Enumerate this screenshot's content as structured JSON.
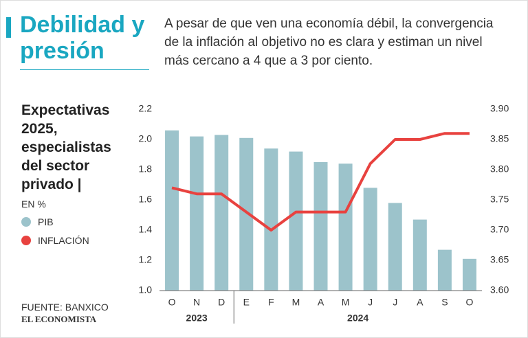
{
  "chart_data": {
    "type": "bar-line",
    "title": "Debilidad y presión",
    "subtitle": "A pesar de que ven una economía débil, la convergencia de la inflación al objetivo no es clara y estiman un nivel más cercano a 4 que a 3 por ciento.",
    "chart_label": "Expectativas 2025, especialistas del sector privado |",
    "unit": "EN %",
    "source": "FUENTE: BANXICO",
    "brand": "EL ECONOMISTA",
    "categories": [
      "O",
      "N",
      "D",
      "E",
      "F",
      "M",
      "A",
      "M",
      "J",
      "J",
      "A",
      "S",
      "O"
    ],
    "category_years": [
      "2023",
      "2023",
      "2023",
      "2024",
      "2024",
      "2024",
      "2024",
      "2024",
      "2024",
      "2024",
      "2024",
      "2024",
      "2024"
    ],
    "series": [
      {
        "name": "PIB",
        "type": "bar",
        "color": "#9cc3cb",
        "values": [
          2.06,
          2.02,
          2.03,
          2.01,
          1.94,
          1.92,
          1.85,
          1.84,
          1.68,
          1.58,
          1.47,
          1.27,
          1.21
        ]
      },
      {
        "name": "INFLACIÓN",
        "type": "line",
        "axis": "y2",
        "color": "#e8423f",
        "values": [
          3.77,
          3.76,
          3.76,
          3.73,
          3.7,
          3.73,
          3.73,
          3.73,
          3.81,
          3.85,
          3.85,
          3.86,
          3.86
        ]
      }
    ],
    "ylim": [
      1.0,
      2.2
    ],
    "yticks": [
      {
        "value": 1.0,
        "label": "1.0"
      },
      1.2,
      1.4,
      1.6,
      1.8,
      {
        "value": 2.0,
        "label": "2.0"
      },
      2.2
    ],
    "y2lim": [
      3.6,
      3.9
    ],
    "y2ticks": [
      {
        "value": 3.6,
        "label": "3.60"
      },
      3.65,
      {
        "value": 3.7,
        "label": "3.70"
      },
      3.75,
      {
        "value": 3.8,
        "label": "3.80"
      },
      3.85,
      {
        "value": 3.9,
        "label": "3.90"
      }
    ]
  }
}
